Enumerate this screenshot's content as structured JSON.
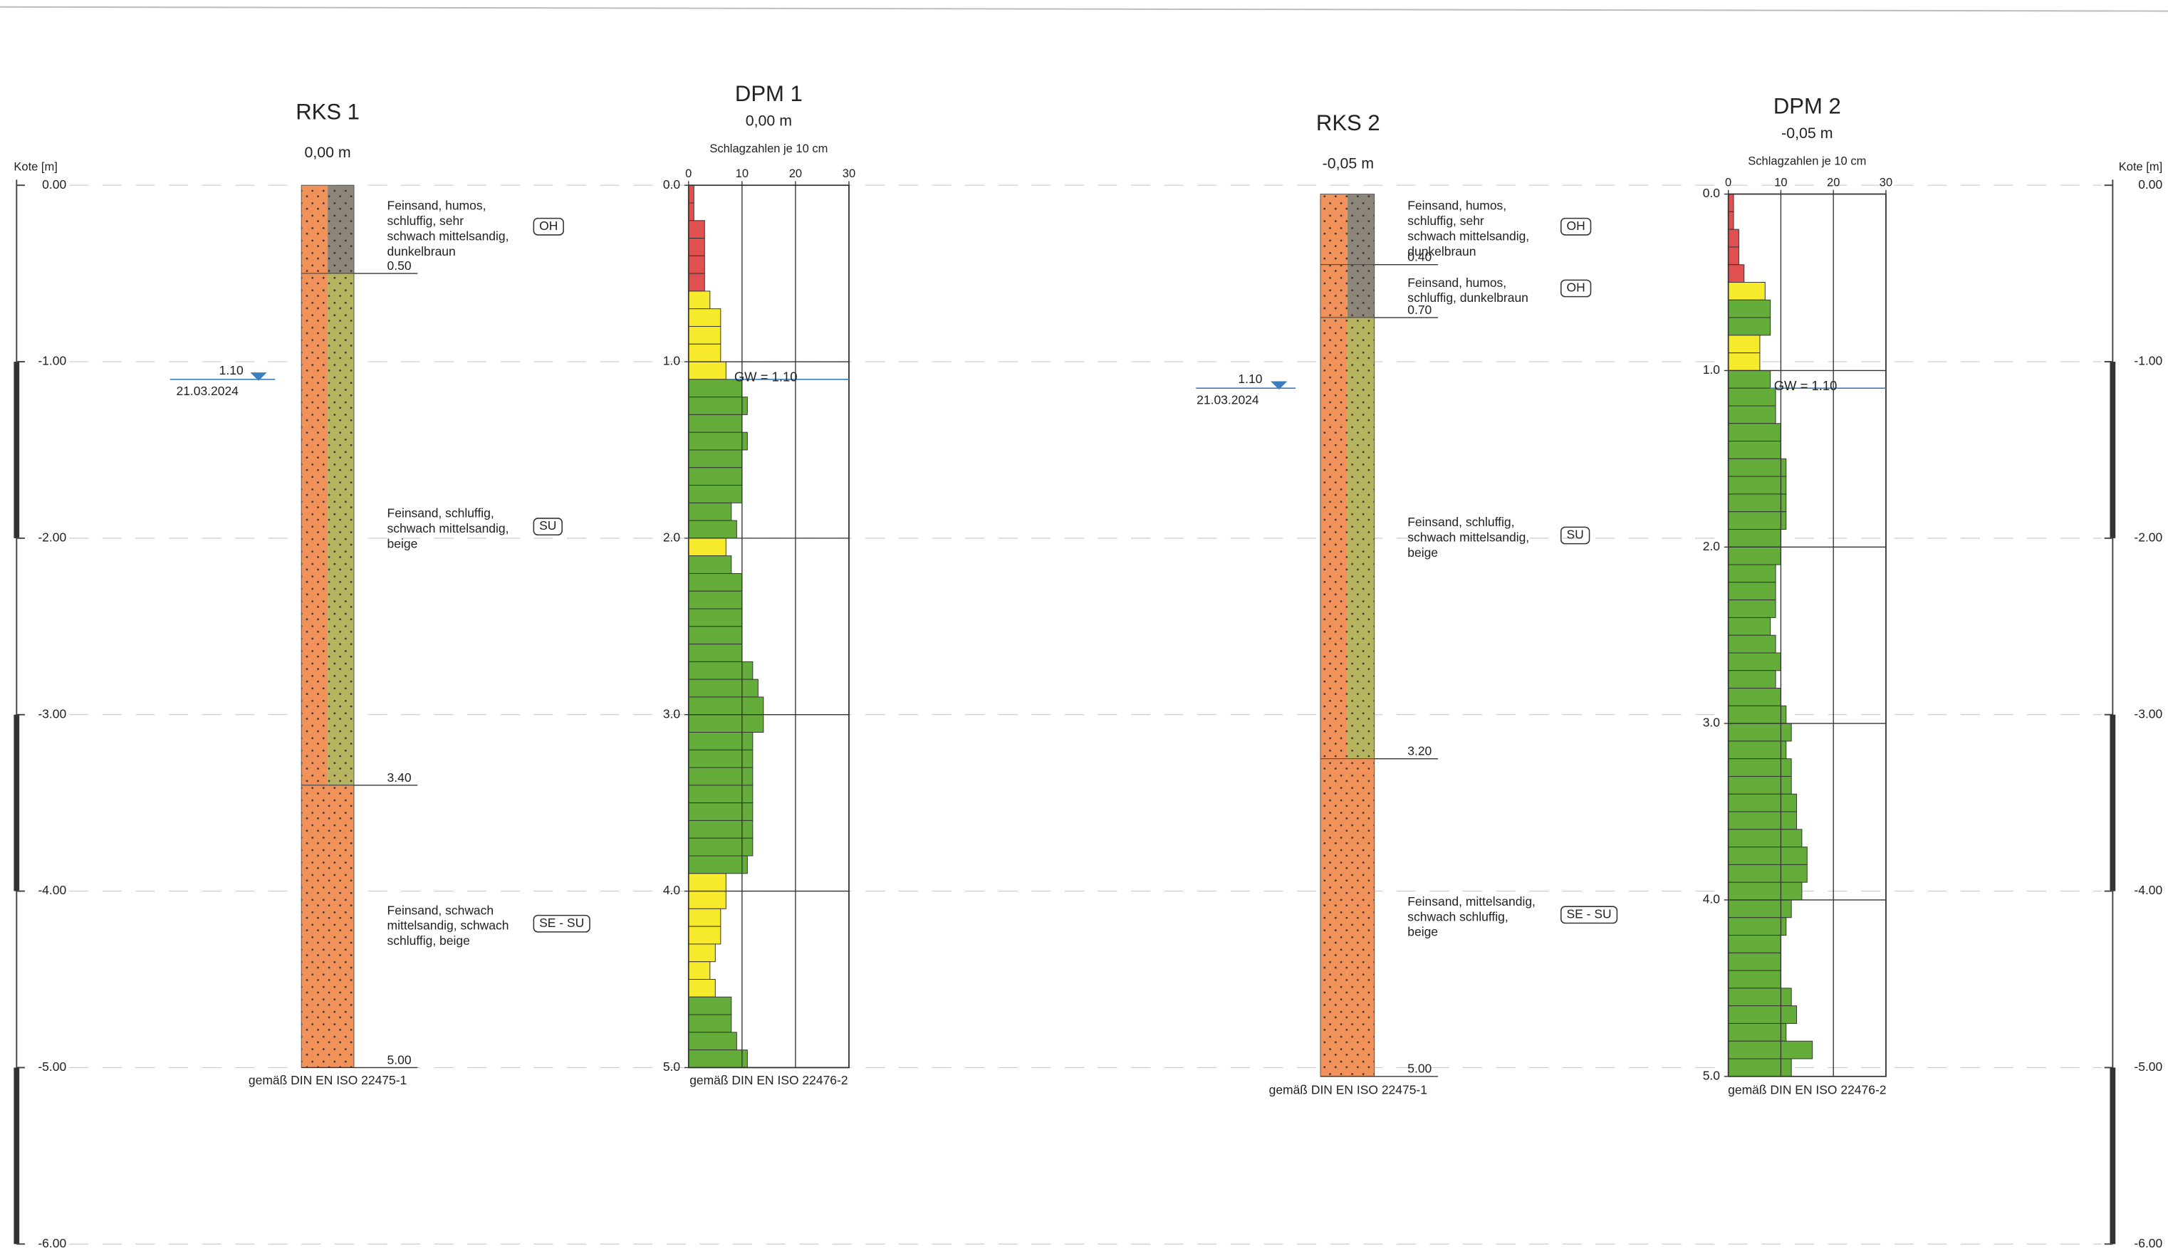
{
  "axis": {
    "label": "Kote [m]",
    "lim": [
      0,
      -6
    ],
    "ticks": [
      {
        "value": 0,
        "label": "0.00"
      },
      {
        "value": -1,
        "label": "-1.00"
      },
      {
        "value": -2,
        "label": "-2.00"
      },
      {
        "value": -3,
        "label": "-3.00"
      },
      {
        "value": -4,
        "label": "-4.00"
      },
      {
        "value": -5,
        "label": "-5.00"
      },
      {
        "value": -6,
        "label": "-6.00"
      }
    ]
  },
  "boreholes": [
    {
      "title": "RKS 1",
      "elevation": 0,
      "elevation_label": "0,00 m",
      "standard": "gemäß DIN EN ISO 22475-1",
      "groundwater": {
        "depth": {
          "value": 1.1,
          "label": "1.10"
        },
        "date": "21.03.2024"
      },
      "layers": [
        {
          "bottom": {
            "value": 0.5,
            "label": "0.50"
          },
          "description": [
            "Feinsand, humos,",
            "schluffig, sehr",
            "schwach mittelsandig,",
            "dunkelbraun"
          ],
          "code": "OH",
          "colors": [
            "#f0925a",
            "#8c857a"
          ]
        },
        {
          "bottom": {
            "value": 3.4,
            "label": "3.40"
          },
          "description": [
            "Feinsand, schluffig,",
            "schwach mittelsandig,",
            "beige"
          ],
          "code": "SU",
          "colors": [
            "#f0925a",
            "#b6b45e"
          ]
        },
        {
          "bottom": {
            "value": 5,
            "label": "5.00"
          },
          "description": [
            "Feinsand, schwach",
            "mittelsandig, schwach",
            "schluffig, beige"
          ],
          "code": "SE - SU",
          "colors": [
            "#f0925a",
            "#f0925a"
          ]
        }
      ]
    },
    {
      "title": "RKS 2",
      "elevation": -0.05,
      "elevation_label": "-0,05 m",
      "standard": "gemäß DIN EN ISO 22475-1",
      "groundwater": {
        "depth": {
          "value": 1.1,
          "label": "1.10"
        },
        "date": "21.03.2024"
      },
      "layers": [
        {
          "bottom": {
            "value": 0.4,
            "label": "0.40"
          },
          "description": [
            "Feinsand, humos,",
            "schluffig, sehr",
            "schwach mittelsandig,",
            "dunkelbraun"
          ],
          "code": "OH",
          "colors": [
            "#f0925a",
            "#8c857a"
          ]
        },
        {
          "bottom": {
            "value": 0.7,
            "label": "0.70"
          },
          "description": [
            "Feinsand, humos,",
            "schluffig, dunkelbraun"
          ],
          "code": "OH",
          "colors": [
            "#f0925a",
            "#8c857a"
          ]
        },
        {
          "bottom": {
            "value": 3.2,
            "label": "3.20"
          },
          "description": [
            "Feinsand, schluffig,",
            "schwach mittelsandig,",
            "beige"
          ],
          "code": "SU",
          "colors": [
            "#f0925a",
            "#b6b45e"
          ]
        },
        {
          "bottom": {
            "value": 5,
            "label": "5.00"
          },
          "description": [
            "Feinsand, mittelsandig,",
            "schwach schluffig,",
            "beige"
          ],
          "code": "SE - SU",
          "colors": [
            "#f0925a",
            "#f0925a"
          ]
        }
      ]
    }
  ],
  "probes": [
    {
      "title": "DPM 1",
      "elevation": 0,
      "elevation_label": "0,00 m",
      "x_label": "Schlagzahlen je 10 cm",
      "standard": "gemäß DIN EN ISO 22476-2",
      "xlim": [
        0,
        30
      ],
      "xticks": [
        0,
        10,
        20,
        30
      ],
      "depthlim": [
        0,
        5
      ],
      "depth_ticks": [
        {
          "value": 0,
          "label": "0.0"
        },
        {
          "value": 1,
          "label": "1.0"
        },
        {
          "value": 2,
          "label": "2.0"
        },
        {
          "value": 3,
          "label": "3.0"
        },
        {
          "value": 4,
          "label": "4.0"
        },
        {
          "value": 5,
          "label": "5.0"
        }
      ],
      "groundwater": {
        "value": 1.1,
        "label": "GW = 1.10"
      },
      "values": [
        1,
        1,
        3,
        3,
        3,
        3,
        4,
        6,
        6,
        6,
        7,
        10,
        11,
        10,
        11,
        10,
        10,
        10,
        8,
        9,
        7,
        8,
        10,
        10,
        10,
        10,
        10,
        12,
        13,
        14,
        14,
        12,
        12,
        12,
        12,
        12,
        12,
        12,
        11,
        7,
        7,
        6,
        6,
        5,
        4,
        5,
        8,
        8,
        9,
        11
      ]
    },
    {
      "title": "DPM 2",
      "elevation": -0.05,
      "elevation_label": "-0,05 m",
      "x_label": "Schlagzahlen je 10 cm",
      "standard": "gemäß DIN EN ISO 22476-2",
      "xlim": [
        0,
        30
      ],
      "xticks": [
        0,
        10,
        20,
        30
      ],
      "depthlim": [
        0,
        5
      ],
      "depth_ticks": [
        {
          "value": 0,
          "label": "0.0"
        },
        {
          "value": 1,
          "label": "1.0"
        },
        {
          "value": 2,
          "label": "2.0"
        },
        {
          "value": 3,
          "label": "3.0"
        },
        {
          "value": 4,
          "label": "4.0"
        },
        {
          "value": 5,
          "label": "5.0"
        }
      ],
      "groundwater": {
        "value": 1.1,
        "label": "GW = 1.10"
      },
      "values": [
        1,
        1,
        2,
        2,
        3,
        7,
        8,
        8,
        6,
        6,
        8,
        9,
        9,
        10,
        10,
        11,
        11,
        11,
        11,
        10,
        10,
        9,
        9,
        9,
        8,
        9,
        10,
        9,
        10,
        11,
        12,
        11,
        12,
        12,
        13,
        13,
        14,
        15,
        15,
        14,
        12,
        11,
        10,
        10,
        10,
        12,
        13,
        11,
        16,
        12
      ]
    }
  ]
}
